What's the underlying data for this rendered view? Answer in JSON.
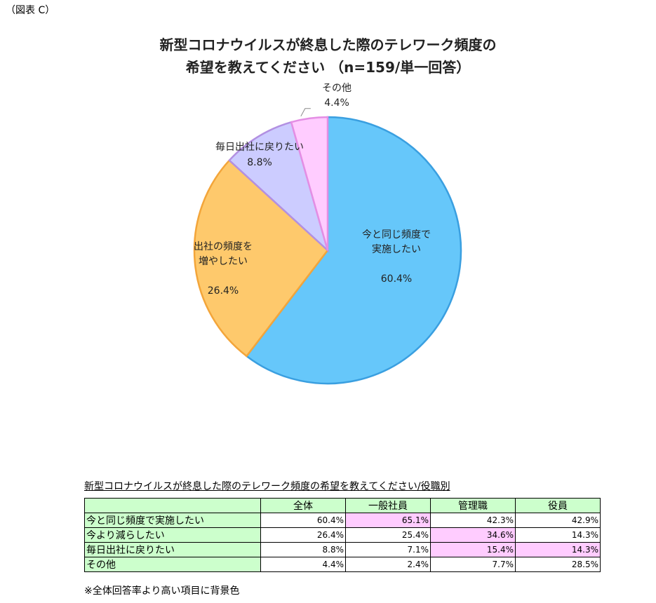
{
  "header": "（図表 C）",
  "chart_data": {
    "type": "pie",
    "title": [
      "新型コロナウイルスが終息した際のテレワーク頻度の",
      "希望を教えてください （n=159/単一回答）"
    ],
    "categories": [
      "今と同じ頻度で\n実施したい",
      "出社の頻度を\n増やしたい",
      "毎日出社に戻りたい",
      "その他"
    ],
    "values": [
      60.4,
      26.4,
      8.8,
      4.4
    ],
    "value_labels": [
      "60.4%",
      "26.4%",
      "8.8%",
      "4.4%"
    ],
    "colors": [
      "#66c7fa",
      "#fec96c",
      "#ccccff",
      "#ffccff"
    ],
    "edge_colors": [
      "#3a9fe0",
      "#f3a53a",
      "#b290e2",
      "#e48ee4"
    ]
  },
  "table": {
    "title": "新型コロナウイルスが終息した際のテレワーク頻度の希望を教えてください/役職別",
    "columns": [
      "全体",
      "一般社員",
      "管理職",
      "役員"
    ],
    "rows": [
      {
        "label": "今と同じ頻度で実施したい",
        "cells": [
          "60.4%",
          "65.1%",
          "42.3%",
          "42.9%"
        ],
        "highlight": [
          1
        ]
      },
      {
        "label": "今より減らしたい",
        "cells": [
          "26.4%",
          "25.4%",
          "34.6%",
          "14.3%"
        ],
        "highlight": [
          2
        ]
      },
      {
        "label": "毎日出社に戻りたい",
        "cells": [
          "8.8%",
          "7.1%",
          "15.4%",
          "14.3%"
        ],
        "highlight": [
          2,
          3
        ]
      },
      {
        "label": "その他",
        "cells": [
          "4.4%",
          "2.4%",
          "7.7%",
          "28.5%"
        ],
        "highlight": []
      }
    ],
    "header_color": "#ccffcc",
    "highlight_color": "#ffccff",
    "note": "※全体回答率より高い項目に背景色"
  }
}
